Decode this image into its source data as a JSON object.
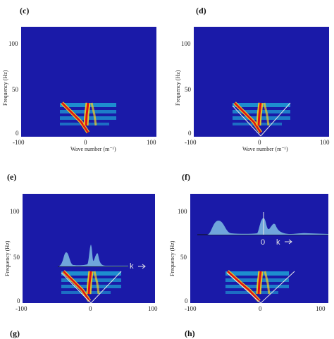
{
  "panels": [
    {
      "id": "c",
      "label": "(c)",
      "y_ticks": [
        "100",
        "50",
        "0"
      ],
      "x_ticks": [
        "-100",
        "0",
        "100"
      ],
      "ylabel": "Frequency (Hz)",
      "xlabel": "Wave number (m⁻¹)"
    },
    {
      "id": "d",
      "label": "(d)",
      "y_ticks": [
        "100",
        "50",
        "0"
      ],
      "x_ticks": [
        "-100",
        "0",
        "100"
      ],
      "ylabel": "Frequency (Hz)",
      "xlabel": "Wave number (m⁻¹)"
    },
    {
      "id": "e",
      "label": "(e)",
      "y_ticks": [
        "100",
        "50",
        "0"
      ],
      "x_ticks": [
        "-100",
        "0",
        "100"
      ],
      "ylabel": "Frequency (Hz)",
      "xlabel": "",
      "k_label": "k"
    },
    {
      "id": "f",
      "label": "(f)",
      "y_ticks": [
        "100",
        "50",
        "0"
      ],
      "x_ticks": [
        "-100",
        "0",
        "100"
      ],
      "ylabel": "Frequency (Hz)",
      "xlabel": "",
      "zero_label": "0",
      "k_label": "k"
    }
  ],
  "partial_labels": {
    "g": "(g)",
    "h": "(h)"
  },
  "colors": {
    "background": "#1a1aa8",
    "hot": "#e01010",
    "warm": "#f5d020",
    "cool": "#20c0e0"
  }
}
